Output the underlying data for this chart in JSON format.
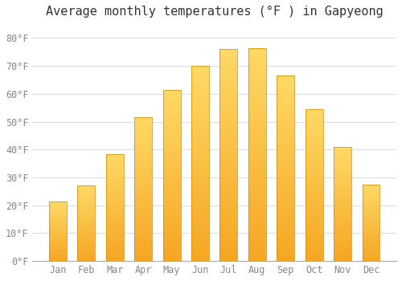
{
  "title": "Average monthly temperatures (°F ) in Gapyeong",
  "months": [
    "Jan",
    "Feb",
    "Mar",
    "Apr",
    "May",
    "Jun",
    "Jul",
    "Aug",
    "Sep",
    "Oct",
    "Nov",
    "Dec"
  ],
  "values": [
    21.5,
    27.0,
    38.5,
    51.5,
    61.5,
    70.0,
    76.0,
    76.5,
    66.5,
    54.5,
    41.0,
    27.5
  ],
  "bar_color_bottom": "#F5A623",
  "bar_color_top": "#FFD966",
  "ylim": [
    0,
    85
  ],
  "yticks": [
    0,
    10,
    20,
    30,
    40,
    50,
    60,
    70,
    80
  ],
  "ytick_labels": [
    "0°F",
    "10°F",
    "20°F",
    "30°F",
    "40°F",
    "50°F",
    "60°F",
    "70°F",
    "80°F"
  ],
  "background_color": "#ffffff",
  "grid_color": "#dddddd",
  "title_fontsize": 11,
  "tick_fontsize": 8.5,
  "font_family": "monospace"
}
